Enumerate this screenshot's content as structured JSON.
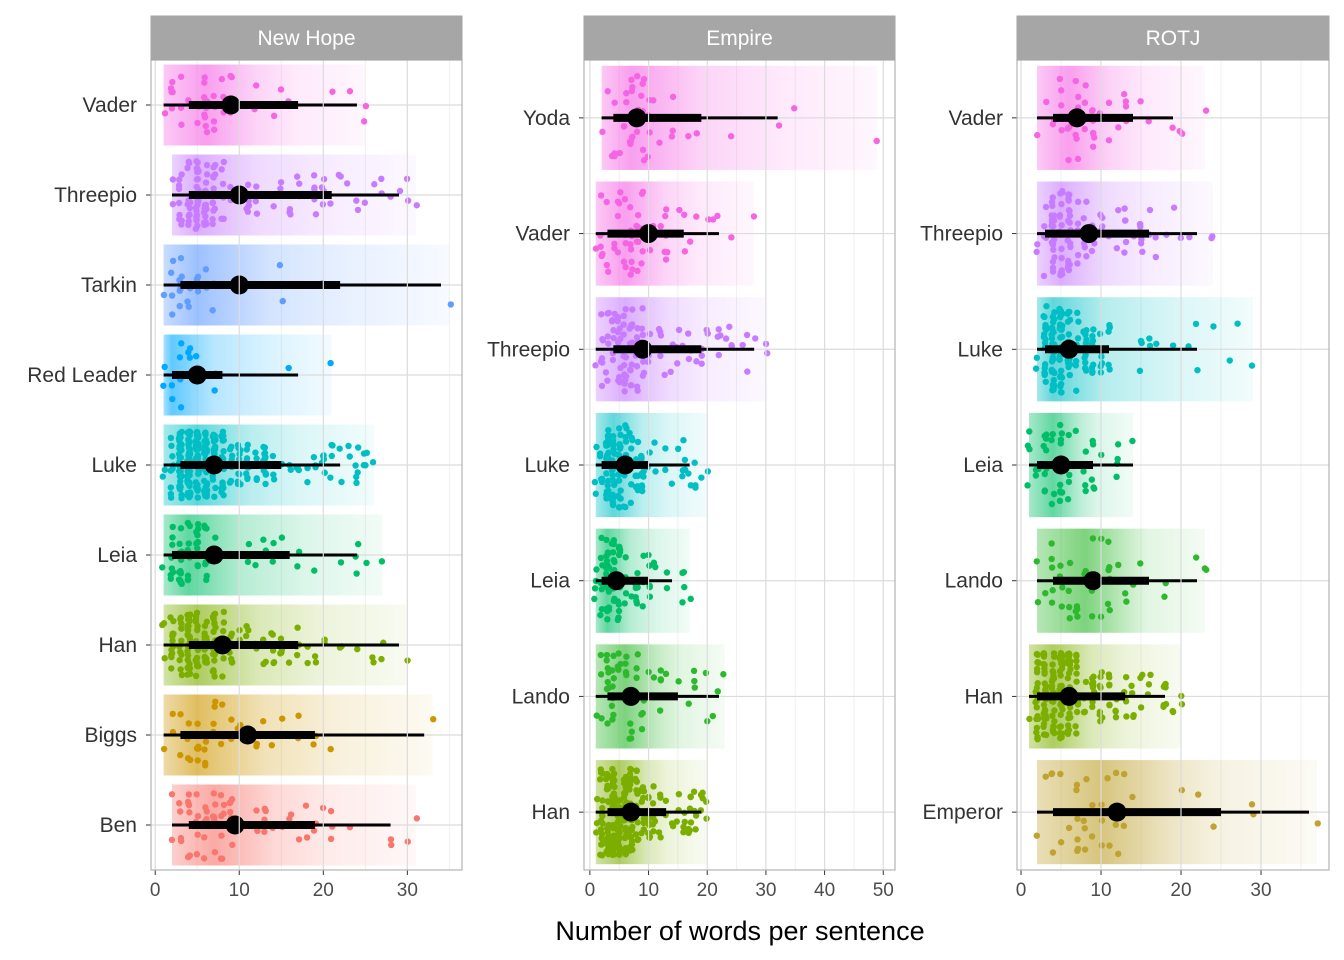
{
  "chart_data": {
    "type": "dotplot-interval",
    "xlabel": "Number of words per sentence",
    "ylabel": "",
    "grid": true,
    "legend": "none",
    "panels": [
      {
        "title": "New Hope",
        "xlim": [
          -0.5,
          36.5
        ],
        "xticks": [
          0,
          10,
          20,
          30
        ],
        "characters": [
          {
            "name": "Vader",
            "color": "#F564E3",
            "median": 9,
            "q_inner": [
              4,
              17
            ],
            "q_outer": [
              1,
              24
            ],
            "max": 25,
            "count": 45,
            "mode": 6
          },
          {
            "name": "Threepio",
            "color": "#C77CFF",
            "median": 10,
            "q_inner": [
              4,
              21
            ],
            "q_outer": [
              2,
              29
            ],
            "max": 31,
            "count": 130,
            "mode": 5
          },
          {
            "name": "Tarkin",
            "color": "#619CFF",
            "median": 10,
            "q_inner": [
              3,
              22
            ],
            "q_outer": [
              1,
              34
            ],
            "max": 35,
            "count": 30,
            "mode": 5
          },
          {
            "name": "Red Leader",
            "color": "#00A9FF",
            "median": 5,
            "q_inner": [
              2,
              8
            ],
            "q_outer": [
              1,
              17
            ],
            "max": 21,
            "count": 18,
            "mode": 2
          },
          {
            "name": "Luke",
            "color": "#00BFC4",
            "median": 7,
            "q_inner": [
              3,
              15
            ],
            "q_outer": [
              1,
              22
            ],
            "max": 26,
            "count": 300,
            "mode": 5
          },
          {
            "name": "Leia",
            "color": "#00BE67",
            "median": 7,
            "q_inner": [
              2,
              16
            ],
            "q_outer": [
              1,
              24
            ],
            "max": 27,
            "count": 70,
            "mode": 4
          },
          {
            "name": "Han",
            "color": "#7CAE00",
            "median": 8,
            "q_inner": [
              4,
              17
            ],
            "q_outer": [
              1,
              29
            ],
            "max": 30,
            "count": 160,
            "mode": 5
          },
          {
            "name": "Biggs",
            "color": "#CD9600",
            "median": 11,
            "q_inner": [
              3,
              19
            ],
            "q_outer": [
              1,
              32
            ],
            "max": 33,
            "count": 40,
            "mode": 5
          },
          {
            "name": "Ben",
            "color": "#F8766D",
            "median": 9.5,
            "q_inner": [
              4,
              19
            ],
            "q_outer": [
              2,
              28
            ],
            "max": 31,
            "count": 70,
            "mode": 7
          }
        ]
      },
      {
        "title": "Empire",
        "xlim": [
          -1,
          52
        ],
        "xticks": [
          0,
          10,
          20,
          30,
          40,
          50
        ],
        "characters": [
          {
            "name": "Yoda",
            "color": "#F564E3",
            "median": 8,
            "q_inner": [
              4,
              19
            ],
            "q_outer": [
              2,
              32
            ],
            "max": 49,
            "count": 45,
            "mode": 7
          },
          {
            "name": "Vader",
            "color": "#F564E3",
            "median": 10,
            "q_inner": [
              3,
              16
            ],
            "q_outer": [
              1,
              22
            ],
            "max": 28,
            "count": 60,
            "mode": 6
          },
          {
            "name": "Threepio",
            "color": "#C77CFF",
            "median": 9,
            "q_inner": [
              4,
              19
            ],
            "q_outer": [
              1,
              28
            ],
            "max": 30,
            "count": 110,
            "mode": 6
          },
          {
            "name": "Luke",
            "color": "#00BFC4",
            "median": 6,
            "q_inner": [
              2,
              10
            ],
            "q_outer": [
              1,
              17
            ],
            "max": 20,
            "count": 140,
            "mode": 4
          },
          {
            "name": "Leia",
            "color": "#00BE67",
            "median": 4.5,
            "q_inner": [
              2,
              10
            ],
            "q_outer": [
              1,
              14
            ],
            "max": 17,
            "count": 90,
            "mode": 3
          },
          {
            "name": "Lando",
            "color": "#2EB82E",
            "median": 7,
            "q_inner": [
              3,
              15
            ],
            "q_outer": [
              1,
              22
            ],
            "max": 23,
            "count": 60,
            "mode": 6
          },
          {
            "name": "Han",
            "color": "#7CAE00",
            "median": 7,
            "q_inner": [
              3,
              13
            ],
            "q_outer": [
              1,
              19
            ],
            "max": 20,
            "count": 240,
            "mode": 5
          }
        ]
      },
      {
        "title": "ROTJ",
        "xlim": [
          -0.5,
          38.5
        ],
        "xticks": [
          0,
          10,
          20,
          30
        ],
        "characters": [
          {
            "name": "Vader",
            "color": "#F564E3",
            "median": 7,
            "q_inner": [
              4,
              14
            ],
            "q_outer": [
              2,
              19
            ],
            "max": 23,
            "count": 45,
            "mode": 6
          },
          {
            "name": "Threepio",
            "color": "#C77CFF",
            "median": 8.5,
            "q_inner": [
              3,
              16
            ],
            "q_outer": [
              2,
              22
            ],
            "max": 24,
            "count": 110,
            "mode": 5
          },
          {
            "name": "Luke",
            "color": "#00BFC4",
            "median": 6,
            "q_inner": [
              3,
              11
            ],
            "q_outer": [
              2,
              22
            ],
            "max": 29,
            "count": 160,
            "mode": 4
          },
          {
            "name": "Leia",
            "color": "#00BE67",
            "median": 5,
            "q_inner": [
              2,
              9
            ],
            "q_outer": [
              1,
              14
            ],
            "max": 14,
            "count": 50,
            "mode": 4
          },
          {
            "name": "Lando",
            "color": "#2EB82E",
            "median": 9,
            "q_inner": [
              4,
              16
            ],
            "q_outer": [
              2,
              22
            ],
            "max": 23,
            "count": 45,
            "mode": 8
          },
          {
            "name": "Han",
            "color": "#7CAE00",
            "median": 6,
            "q_inner": [
              2,
              13
            ],
            "q_outer": [
              1,
              18
            ],
            "max": 20,
            "count": 200,
            "mode": 4
          },
          {
            "name": "Emperor",
            "color": "#BFA22F",
            "median": 12,
            "q_inner": [
              4,
              25
            ],
            "q_outer": [
              2,
              36
            ],
            "max": 37,
            "count": 40,
            "mode": 10
          }
        ]
      }
    ]
  }
}
